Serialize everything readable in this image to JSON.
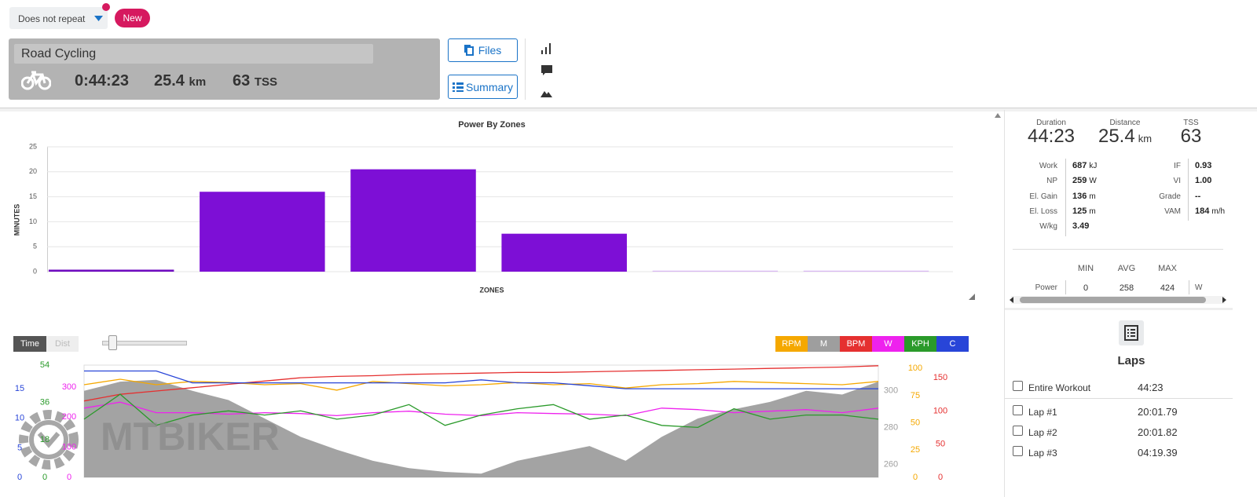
{
  "toolbar": {
    "repeat": "Does not repeat",
    "new_button": "New"
  },
  "workout": {
    "title": "Road Cycling",
    "duration": "0:44:23",
    "distance": "25.4",
    "distance_unit": "km",
    "tss": "63",
    "tss_unit": "TSS"
  },
  "buttons": {
    "files": "Files",
    "summary": "Summary"
  },
  "chart_data": [
    {
      "type": "bar",
      "title": "Power By Zones",
      "x_label": "ZONES",
      "y_label": "MINUTES",
      "categories": [
        null,
        null,
        null,
        null,
        null,
        null
      ],
      "values": [
        0.4,
        16,
        20.5,
        7.6,
        0.2,
        0.2
      ],
      "colors": [
        "#6f0cc0",
        "#7d0fd6",
        "#7d0fd6",
        "#7d0fd6",
        "#d9b8f2",
        "#d9b8f2"
      ],
      "ylim": [
        0,
        25
      ],
      "yticks": [
        0,
        5,
        10,
        15,
        20,
        25
      ],
      "grid": true
    },
    {
      "type": "line",
      "x_toggle": [
        "Time",
        "Dist"
      ],
      "x": [
        0,
        2,
        4,
        6,
        8,
        10,
        12,
        14,
        16,
        18,
        20,
        22,
        24,
        26,
        28,
        30,
        32,
        34,
        36,
        38,
        40,
        42,
        44
      ],
      "xlim": [
        0,
        44
      ],
      "series": [
        {
          "name": "RPM",
          "color": "#f5a800",
          "ylim": [
            0,
            103
          ],
          "yticks": [
            0,
            25,
            50,
            75,
            100
          ],
          "values": [
            85,
            90,
            85,
            88,
            87,
            85,
            86,
            80,
            88,
            86,
            84,
            85,
            87,
            85,
            86,
            82,
            85,
            86,
            88,
            87,
            86,
            85,
            88
          ]
        },
        {
          "name": "M",
          "color": "#9e9e9e",
          "style": "area",
          "ylim": [
            253,
            314
          ],
          "yticks": [
            260,
            280,
            300
          ],
          "values": [
            300,
            305,
            306,
            300,
            295,
            285,
            275,
            268,
            262,
            258,
            256,
            255,
            262,
            266,
            270,
            262,
            275,
            285,
            290,
            294,
            300,
            298,
            305
          ]
        },
        {
          "name": "BPM",
          "color": "#e53030",
          "ylim": [
            0,
            169
          ],
          "yticks": [
            0,
            50,
            100,
            150
          ],
          "values": [
            115,
            125,
            130,
            135,
            140,
            145,
            150,
            152,
            153,
            155,
            156,
            157,
            158,
            158,
            159,
            160,
            161,
            162,
            163,
            164,
            165,
            166,
            168
          ]
        },
        {
          "name": "W",
          "color": "#ee22ee",
          "ylim": [
            0,
            373
          ],
          "yticks": [
            0,
            100,
            200,
            300
          ],
          "values": [
            230,
            250,
            215,
            215,
            210,
            215,
            212,
            205,
            215,
            220,
            210,
            205,
            215,
            212,
            210,
            205,
            230,
            225,
            215,
            220,
            225,
            215,
            230
          ]
        },
        {
          "name": "KPH",
          "color": "#2a9a2a",
          "ylim": [
            0,
            54
          ],
          "yticks": [
            0,
            18,
            36,
            54
          ],
          "values": [
            28,
            40,
            25,
            30,
            32,
            30,
            32,
            28,
            30,
            35,
            25,
            30,
            33,
            35,
            28,
            30,
            25,
            24,
            33,
            28,
            30,
            30,
            28
          ]
        },
        {
          "name": "C",
          "color": "#2845d8",
          "ylim": [
            0,
            19
          ],
          "yticks": [
            0,
            5,
            10,
            15
          ],
          "values": [
            18,
            18,
            18,
            16,
            16,
            16,
            16,
            16,
            16,
            16,
            16,
            16.5,
            16,
            16,
            15.5,
            15,
            15,
            15,
            15,
            15,
            15,
            15,
            15
          ]
        }
      ]
    }
  ],
  "summary": {
    "stats": [
      {
        "label": "Duration",
        "value": "44:23"
      },
      {
        "label": "Distance",
        "value": "25.4",
        "unit": "km"
      },
      {
        "label": "TSS",
        "value": "63"
      }
    ],
    "metrics_left": [
      {
        "label": "Work",
        "value": "687",
        "unit": "kJ"
      },
      {
        "label": "NP",
        "value": "259",
        "unit": "W"
      },
      {
        "label": "El. Gain",
        "value": "136",
        "unit": "m"
      },
      {
        "label": "El. Loss",
        "value": "125",
        "unit": "m"
      },
      {
        "label": "W/kg",
        "value": "3.49"
      }
    ],
    "metrics_right": [
      {
        "label": "IF",
        "value": "0.93"
      },
      {
        "label": "VI",
        "value": "1.00"
      },
      {
        "label": "Grade",
        "value": "--"
      },
      {
        "label": "VAM",
        "value": "184",
        "unit": "m/h"
      }
    ],
    "range": {
      "headers": [
        "MIN",
        "AVG",
        "MAX"
      ],
      "rows": [
        {
          "label": "Power",
          "values": [
            "0",
            "258",
            "424"
          ],
          "unit": "W"
        }
      ]
    }
  },
  "laps": {
    "title": "Laps",
    "rows": [
      {
        "name": "Entire Workout",
        "time": "44:23"
      },
      {
        "name": "Lap #1",
        "time": "20:01.79"
      },
      {
        "name": "Lap #2",
        "time": "20:01.82"
      },
      {
        "name": "Lap #3",
        "time": "04:19.39"
      }
    ]
  },
  "watermark": "MTBIKER"
}
